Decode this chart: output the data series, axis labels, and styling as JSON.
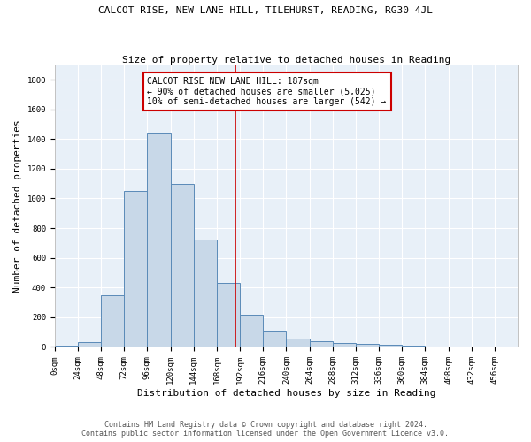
{
  "title": "CALCOT RISE, NEW LANE HILL, TILEHURST, READING, RG30 4JL",
  "subtitle": "Size of property relative to detached houses in Reading",
  "xlabel": "Distribution of detached houses by size in Reading",
  "ylabel": "Number of detached properties",
  "bin_edges": [
    0,
    24,
    48,
    72,
    96,
    120,
    144,
    168,
    192,
    216,
    240,
    264,
    288,
    312,
    336,
    360,
    384,
    408,
    432,
    456,
    480
  ],
  "bar_heights": [
    10,
    30,
    350,
    1050,
    1440,
    1100,
    725,
    430,
    215,
    105,
    55,
    40,
    28,
    18,
    13,
    8,
    5,
    3,
    2,
    1
  ],
  "bar_color": "#c8d8e8",
  "bar_edge_color": "#5a8ab8",
  "property_size": 187,
  "vline_color": "#cc0000",
  "annotation_text": "CALCOT RISE NEW LANE HILL: 187sqm\n← 90% of detached houses are smaller (5,025)\n10% of semi-detached houses are larger (542) →",
  "annotation_box_color": "white",
  "annotation_box_edge_color": "#cc0000",
  "ylim": [
    0,
    1900
  ],
  "yticks": [
    0,
    200,
    400,
    600,
    800,
    1000,
    1200,
    1400,
    1600,
    1800
  ],
  "background_color": "#e8f0f8",
  "footer_line1": "Contains HM Land Registry data © Crown copyright and database right 2024.",
  "footer_line2": "Contains public sector information licensed under the Open Government Licence v3.0.",
  "title_fontsize": 8,
  "subtitle_fontsize": 8,
  "tick_label_fontsize": 6.5,
  "axis_label_fontsize": 8,
  "annotation_fontsize": 7,
  "footer_fontsize": 6
}
